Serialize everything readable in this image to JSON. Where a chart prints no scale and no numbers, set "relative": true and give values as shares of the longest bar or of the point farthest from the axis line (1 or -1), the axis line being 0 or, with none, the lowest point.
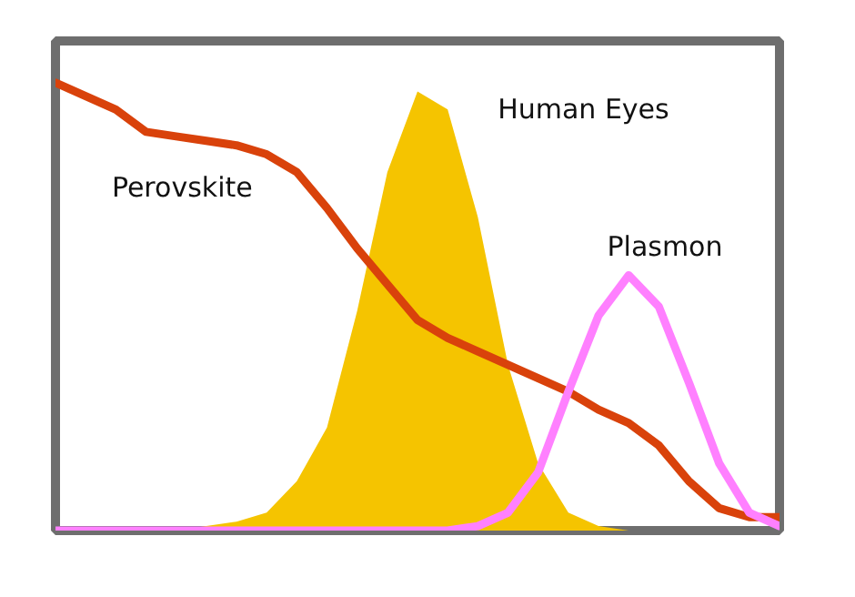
{
  "chart_data": {
    "type": "line",
    "relative": true,
    "categories": [
      null,
      null,
      null,
      null,
      null,
      null,
      null,
      null,
      null,
      null,
      null,
      null,
      null,
      null,
      null,
      null,
      null,
      null,
      null,
      null,
      null,
      null,
      null,
      null,
      null
    ],
    "series": [
      {
        "name": "Perovskite",
        "color": "#d9420b",
        "values": [
          1.0,
          0.97,
          0.94,
          0.89,
          0.88,
          0.87,
          0.86,
          0.84,
          0.8,
          0.72,
          0.63,
          0.55,
          0.47,
          0.43,
          0.4,
          0.37,
          0.34,
          0.31,
          0.27,
          0.24,
          0.19,
          0.11,
          0.05,
          0.03,
          0.03
        ]
      },
      {
        "name": "Human Eyes",
        "type": "area",
        "color": "#f5c400",
        "values": [
          0,
          0,
          0,
          0,
          0,
          0.01,
          0.02,
          0.04,
          0.11,
          0.23,
          0.49,
          0.8,
          0.98,
          0.94,
          0.7,
          0.37,
          0.15,
          0.04,
          0.01,
          0,
          0,
          0,
          0,
          0,
          0
        ]
      },
      {
        "name": "Plasmon",
        "type": "line",
        "color": "#ff80ff",
        "values": [
          0,
          0,
          0,
          0,
          0,
          0,
          0,
          0,
          0,
          0,
          0,
          0,
          0,
          0,
          0.01,
          0.04,
          0.13,
          0.31,
          0.48,
          0.57,
          0.5,
          0.33,
          0.15,
          0.04,
          0.01
        ]
      }
    ],
    "grid": false
  }
}
